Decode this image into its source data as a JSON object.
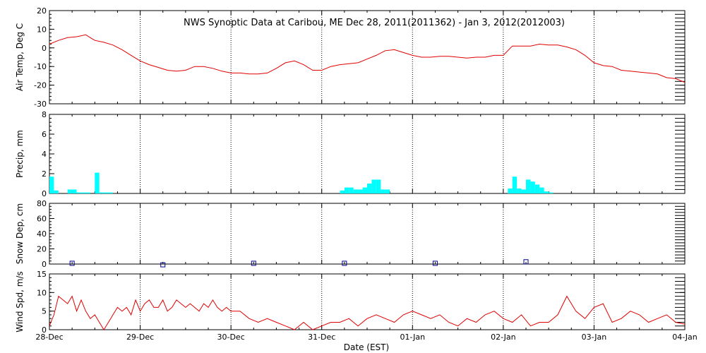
{
  "title": "NWS Synoptic Data at Caribou, ME   Dec 28, 2011(2011362) - Jan  3, 2012(2012003)",
  "xlabel": "Date (EST)",
  "colors": {
    "line": "#e00000",
    "precip": "#00ffff",
    "snow": "#00008b",
    "axis": "#000000"
  },
  "chart_data": [
    {
      "type": "line",
      "ylabel": "Air Temp, Deg C",
      "ylim": [
        -30,
        20
      ],
      "yticks": [
        -30,
        -20,
        -10,
        0,
        10,
        20
      ],
      "x": [
        0,
        0.1,
        0.2,
        0.3,
        0.4,
        0.5,
        0.6,
        0.7,
        0.8,
        0.9,
        1.0,
        1.1,
        1.2,
        1.3,
        1.4,
        1.5,
        1.6,
        1.7,
        1.8,
        1.9,
        2.0,
        2.1,
        2.2,
        2.3,
        2.4,
        2.5,
        2.6,
        2.7,
        2.8,
        2.9,
        3.0,
        3.1,
        3.2,
        3.3,
        3.4,
        3.5,
        3.6,
        3.7,
        3.8,
        3.9,
        4.0,
        4.1,
        4.2,
        4.3,
        4.4,
        4.5,
        4.6,
        4.7,
        4.8,
        4.9,
        5.0,
        5.1,
        5.2,
        5.3,
        5.4,
        5.5,
        5.6,
        5.7,
        5.8,
        5.9,
        6.0,
        6.1,
        6.2,
        6.3,
        6.4,
        6.5,
        6.6,
        6.7,
        6.8,
        6.9,
        7.0
      ],
      "y": [
        2,
        4,
        5.5,
        6,
        7,
        4,
        3,
        1.5,
        -1,
        -4,
        -7,
        -9,
        -10.5,
        -12,
        -12.5,
        -12,
        -10,
        -10,
        -11,
        -12.5,
        -13.5,
        -13.5,
        -14,
        -14,
        -13.5,
        -11,
        -8,
        -7,
        -9,
        -12,
        -12,
        -10,
        -9,
        -8.5,
        -8,
        -6,
        -4,
        -1.5,
        -1,
        -2.5,
        -4,
        -5,
        -5,
        -4.5,
        -4.5,
        -5,
        -5.5,
        -5,
        -5,
        -4,
        -4,
        1,
        1,
        1,
        2,
        1.5,
        1.5,
        0.5,
        -1,
        -4,
        -8,
        -9.5,
        -10,
        -12,
        -12.5,
        -13,
        -13.5,
        -14,
        -16,
        -16.5,
        -18.5
      ]
    },
    {
      "type": "bar",
      "ylabel": "Precip, mm",
      "ylim": [
        0,
        8
      ],
      "yticks": [
        0,
        2,
        4,
        6,
        8
      ],
      "x": [
        0,
        0.05,
        0.1,
        0.15,
        0.2,
        0.25,
        0.3,
        0.35,
        0.4,
        0.45,
        0.5,
        0.55,
        0.6,
        0.65,
        3.2,
        3.25,
        3.3,
        3.35,
        3.4,
        3.45,
        3.5,
        3.55,
        3.6,
        3.65,
        3.7,
        5.05,
        5.1,
        5.15,
        5.2,
        5.25,
        5.3,
        5.35,
        5.4,
        5.45,
        5.5
      ],
      "values": [
        1.7,
        0.3,
        0,
        0,
        0.4,
        0.4,
        0.1,
        0.1,
        0.1,
        0,
        2.1,
        0.1,
        0.1,
        0.1,
        0.3,
        0.6,
        0.6,
        0.4,
        0.4,
        0.6,
        1.0,
        1.4,
        1.4,
        0.4,
        0.4,
        0.5,
        1.7,
        0.5,
        0.4,
        1.4,
        1.2,
        0.9,
        0.6,
        0.2,
        0.1
      ]
    },
    {
      "type": "scatter",
      "ylabel": "Snow Dep, cm",
      "ylim": [
        0,
        80
      ],
      "yticks": [
        0,
        20,
        40,
        60,
        80
      ],
      "x": [
        0.25,
        1.25,
        2.25,
        3.25,
        4.25,
        5.25
      ],
      "y": [
        1,
        -1,
        1,
        1,
        1,
        3
      ]
    },
    {
      "type": "line",
      "ylabel": "Wind Spd, m/s",
      "ylim": [
        0,
        15
      ],
      "yticks": [
        0,
        5,
        10,
        15
      ],
      "x": [
        0,
        0.05,
        0.1,
        0.15,
        0.2,
        0.25,
        0.3,
        0.35,
        0.4,
        0.45,
        0.5,
        0.55,
        0.6,
        0.65,
        0.7,
        0.75,
        0.8,
        0.85,
        0.9,
        0.95,
        1.0,
        1.05,
        1.1,
        1.15,
        1.2,
        1.25,
        1.3,
        1.35,
        1.4,
        1.45,
        1.5,
        1.55,
        1.6,
        1.65,
        1.7,
        1.75,
        1.8,
        1.85,
        1.9,
        1.95,
        2.0,
        2.1,
        2.2,
        2.3,
        2.4,
        2.5,
        2.6,
        2.7,
        2.8,
        2.9,
        3.0,
        3.1,
        3.2,
        3.3,
        3.4,
        3.5,
        3.6,
        3.7,
        3.8,
        3.9,
        4.0,
        4.1,
        4.2,
        4.3,
        4.4,
        4.5,
        4.6,
        4.7,
        4.8,
        4.9,
        5.0,
        5.1,
        5.2,
        5.3,
        5.4,
        5.5,
        5.6,
        5.7,
        5.8,
        5.9,
        6.0,
        6.1,
        6.2,
        6.3,
        6.4,
        6.5,
        6.6,
        6.7,
        6.8,
        6.9,
        7.0
      ],
      "y": [
        1,
        4,
        9,
        8,
        7,
        9,
        5,
        8,
        5,
        3,
        4,
        2,
        0,
        2,
        4,
        6,
        5,
        6,
        4,
        8,
        5,
        7,
        8,
        6,
        6,
        8,
        5,
        6,
        8,
        7,
        6,
        7,
        6,
        5,
        7,
        6,
        8,
        6,
        5,
        6,
        5,
        5,
        3,
        2,
        3,
        2,
        1,
        0,
        2,
        0,
        1,
        2,
        2,
        3,
        1,
        3,
        4,
        3,
        2,
        4,
        5,
        4,
        3,
        4,
        2,
        1,
        3,
        2,
        4,
        5,
        3,
        2,
        4,
        1,
        2,
        2,
        4,
        9,
        5,
        3,
        6,
        7,
        2,
        3,
        5,
        4,
        2,
        3,
        4,
        2,
        1.5
      ]
    }
  ],
  "x_ticks": [
    {
      "value": 0,
      "label": "28-Dec"
    },
    {
      "value": 1,
      "label": "29-Dec"
    },
    {
      "value": 2,
      "label": "30-Dec"
    },
    {
      "value": 3,
      "label": "31-Dec"
    },
    {
      "value": 4,
      "label": "01-Jan"
    },
    {
      "value": 5,
      "label": "02-Jan"
    },
    {
      "value": 6,
      "label": "03-Jan"
    },
    {
      "value": 7,
      "label": "04-Jan"
    }
  ]
}
